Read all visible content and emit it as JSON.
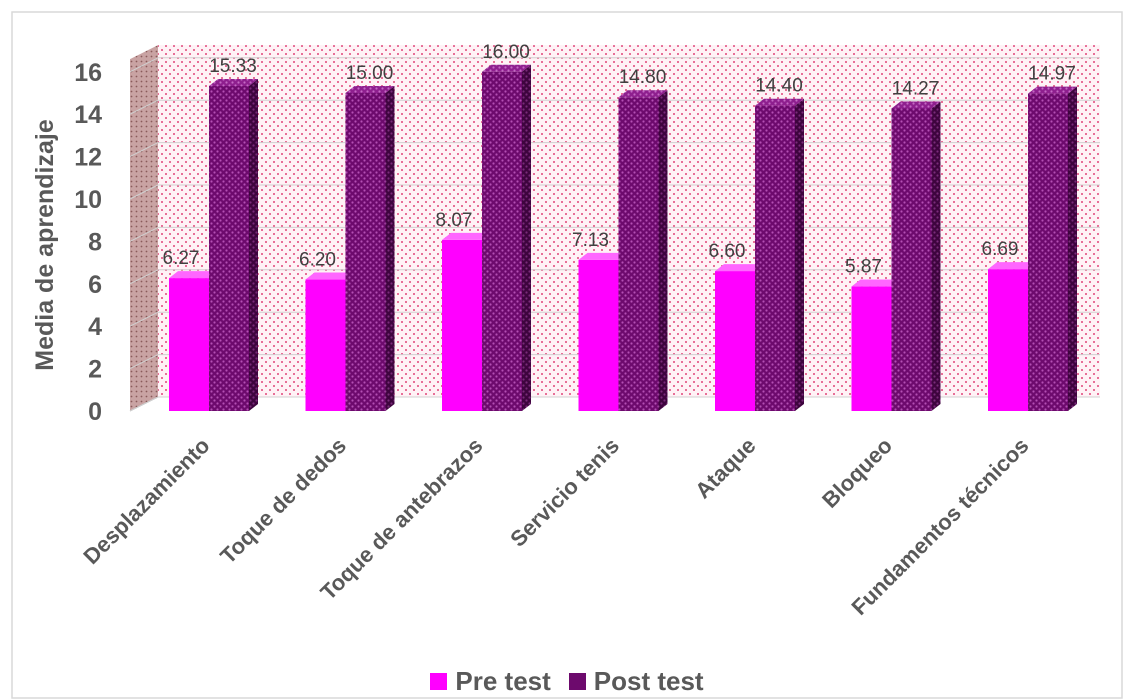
{
  "chart_data": {
    "type": "bar",
    "subtype": "3d-clustered-column",
    "categories": [
      "Desplazamiento",
      "Toque de dedos",
      "Toque de antebrazos",
      "Servicio tenis",
      "Ataque",
      "Bloqueo",
      "Fundamentos técnicos"
    ],
    "series": [
      {
        "name": "Pre test",
        "values": [
          6.27,
          6.2,
          8.07,
          7.13,
          6.6,
          5.87,
          6.69
        ],
        "labels": [
          "6.27",
          "6.20",
          "8.07",
          "7.13",
          "6.60",
          "5.87",
          "6.69"
        ],
        "color": "#ff00ff"
      },
      {
        "name": "Post test",
        "values": [
          15.33,
          15.0,
          16.0,
          14.8,
          14.4,
          14.27,
          14.97
        ],
        "labels": [
          "15.33",
          "15.00",
          "16.00",
          "14.80",
          "14.40",
          "14.27",
          "14.97"
        ],
        "color": "#7a0e7a"
      }
    ],
    "ylabel": "Media de aprendizaje",
    "xlabel": "",
    "ylim": [
      0,
      16
    ],
    "yticks": [
      "0",
      "2",
      "4",
      "6",
      "8",
      "10",
      "12",
      "14",
      "16"
    ],
    "grid": true,
    "legend": "bottom"
  }
}
